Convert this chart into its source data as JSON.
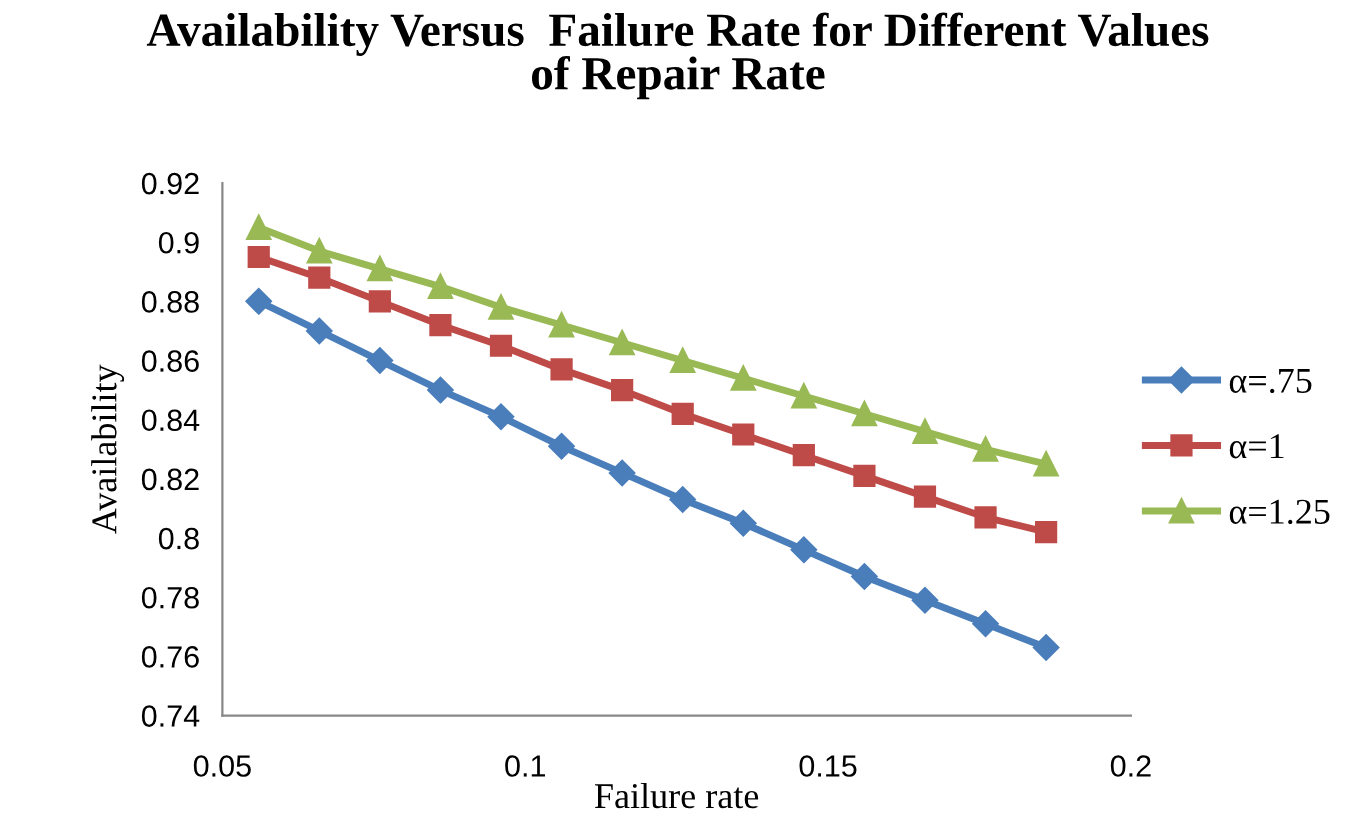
{
  "chart_data": {
    "type": "line",
    "title": "Availability Versus  Failure Rate for Different Values of Repair Rate",
    "xlabel": "Failure rate",
    "ylabel": "Availability",
    "x": [
      0.056,
      0.066,
      0.076,
      0.086,
      0.096,
      0.106,
      0.116,
      0.126,
      0.136,
      0.146,
      0.156,
      0.166,
      0.176,
      0.186
    ],
    "series": [
      {
        "name": "α=.75",
        "color": "#4a7ebb",
        "marker": "diamond",
        "values": [
          0.88,
          0.87,
          0.86,
          0.85,
          0.841,
          0.831,
          0.822,
          0.813,
          0.805,
          0.796,
          0.787,
          0.779,
          0.771,
          0.763
        ]
      },
      {
        "name": "α=1",
        "color": "#be4b48",
        "marker": "square",
        "values": [
          0.895,
          0.888,
          0.88,
          0.872,
          0.865,
          0.857,
          0.85,
          0.842,
          0.835,
          0.828,
          0.821,
          0.814,
          0.807,
          0.802
        ]
      },
      {
        "name": "α=1.25",
        "color": "#98b954",
        "marker": "triangle",
        "values": [
          0.905,
          0.897,
          0.891,
          0.885,
          0.878,
          0.872,
          0.866,
          0.86,
          0.854,
          0.848,
          0.842,
          0.836,
          0.83,
          0.825
        ]
      }
    ],
    "xlim": [
      0.05,
      0.2
    ],
    "xticks": [
      0.05,
      0.1,
      0.15,
      0.2
    ],
    "ylim": [
      0.74,
      0.92
    ],
    "yticks": [
      0.74,
      0.76,
      0.78,
      0.8,
      0.82,
      0.84,
      0.86,
      0.88,
      0.9,
      0.92
    ],
    "grid": false,
    "legend": "right",
    "line_style": "solid"
  }
}
